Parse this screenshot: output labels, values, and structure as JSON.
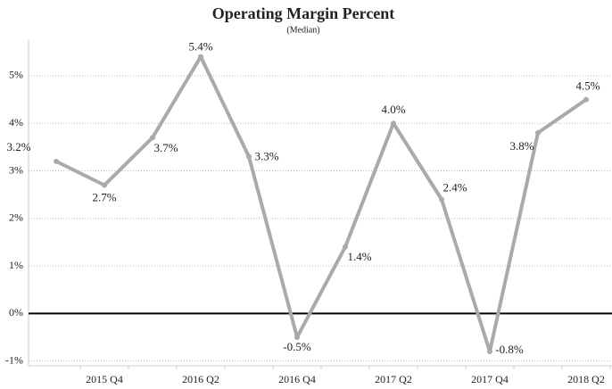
{
  "chart_data": {
    "type": "line",
    "title": "Operating Margin Percent",
    "subtitle": "(Median)",
    "categories": [
      null,
      "2015 Q4",
      null,
      "2016 Q2",
      null,
      "2016 Q4",
      null,
      "2017 Q2",
      null,
      "2017 Q4",
      null,
      "2018 Q2"
    ],
    "series": [
      {
        "name": "Operating Margin Percent",
        "color": "#aaaaaa",
        "values": [
          3.2,
          2.7,
          3.7,
          5.4,
          3.3,
          -0.5,
          1.4,
          4.0,
          2.4,
          -0.8,
          3.8,
          4.5
        ],
        "value_labels": [
          "3.2%",
          "2.7%",
          "3.7%",
          "5.4%",
          "3.3%",
          "-0.5%",
          "1.4%",
          "4.0%",
          "2.4%",
          "-0.8%",
          "3.8%",
          "4.5%"
        ]
      }
    ],
    "ylim": [
      -1.1,
      5.75
    ],
    "yticks": [
      {
        "value": -1,
        "label": "-1%"
      },
      {
        "value": 0,
        "label": "0%"
      },
      {
        "value": 1,
        "label": "1%"
      },
      {
        "value": 2,
        "label": "2%"
      },
      {
        "value": 3,
        "label": "3%"
      },
      {
        "value": 4,
        "label": "4%"
      },
      {
        "value": 5,
        "label": "5%"
      }
    ],
    "grid": true
  }
}
